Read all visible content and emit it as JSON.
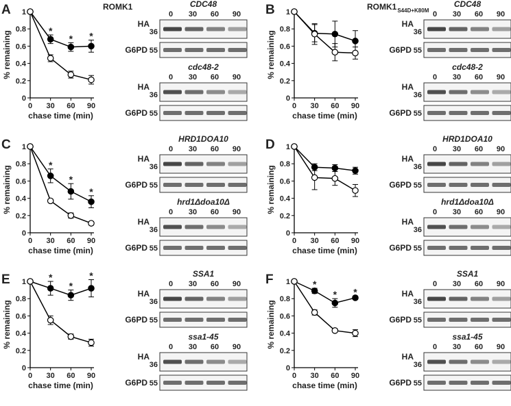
{
  "chart_data": [
    {
      "type": "line",
      "title": "ROMK1",
      "xlabel": "chase time (min)",
      "ylabel": "% remaining",
      "x": [
        0,
        30,
        60,
        90
      ],
      "xlim": [
        0,
        90
      ],
      "xticks": [
        0,
        30,
        60,
        90
      ],
      "ylim": [
        0,
        1
      ],
      "yticks": [
        0,
        0.2,
        0.4,
        0.6,
        0.8,
        1
      ],
      "series": [
        {
          "color": "#000",
          "fill": "#000",
          "values": [
            1,
            0.68,
            0.59,
            0.6
          ],
          "errors": [
            0,
            0.05,
            0.05,
            0.07
          ]
        },
        {
          "color": "#000",
          "fill": "#fff",
          "values": [
            1,
            0.46,
            0.27,
            0.21
          ],
          "errors": [
            0,
            0.04,
            0.04,
            0.05
          ]
        }
      ],
      "annotations": [
        {
          "text": "*",
          "x": 30
        },
        {
          "text": "*",
          "x": 60
        },
        {
          "text": "*",
          "x": 90
        }
      ]
    },
    {
      "type": "line",
      "title": "ROMK1",
      "title_sub": "S44D+K80M",
      "xlabel": "chase time (min)",
      "ylabel": "% remaining",
      "x": [
        0,
        30,
        60,
        90
      ],
      "xlim": [
        0,
        90
      ],
      "xticks": [
        0,
        30,
        60,
        90
      ],
      "ylim": [
        0,
        1
      ],
      "yticks": [
        0,
        0.2,
        0.4,
        0.6,
        0.8,
        1
      ],
      "series": [
        {
          "color": "#000",
          "fill": "#000",
          "values": [
            1,
            0.75,
            0.74,
            0.66
          ],
          "errors": [
            0,
            0.1,
            0.15,
            0.12
          ]
        },
        {
          "color": "#000",
          "fill": "#fff",
          "values": [
            1,
            0.74,
            0.53,
            0.52
          ],
          "errors": [
            0,
            0.12,
            0.1,
            0.07
          ]
        }
      ],
      "annotations": []
    },
    {
      "type": "line",
      "xlabel": "chase time (min)",
      "ylabel": "% remaining",
      "x": [
        0,
        30,
        60,
        90
      ],
      "xlim": [
        0,
        90
      ],
      "xticks": [
        0,
        30,
        60,
        90
      ],
      "ylim": [
        0,
        1
      ],
      "yticks": [
        0,
        0.2,
        0.4,
        0.6,
        0.8,
        1
      ],
      "series": [
        {
          "color": "#000",
          "fill": "#000",
          "values": [
            1,
            0.66,
            0.48,
            0.36
          ],
          "errors": [
            0,
            0.08,
            0.09,
            0.07
          ]
        },
        {
          "color": "#000",
          "fill": "#fff",
          "values": [
            1,
            0.37,
            0.2,
            0.11
          ],
          "errors": [
            0,
            0.02,
            0.03,
            0.02
          ]
        }
      ],
      "annotations": [
        {
          "text": "*",
          "x": 30
        },
        {
          "text": "*",
          "x": 60
        },
        {
          "text": "*",
          "x": 90
        }
      ]
    },
    {
      "type": "line",
      "xlabel": "chase time (min)",
      "ylabel": "% remaining",
      "x": [
        0,
        30,
        60,
        90
      ],
      "xlim": [
        0,
        90
      ],
      "xticks": [
        0,
        30,
        60,
        90
      ],
      "ylim": [
        0,
        1
      ],
      "yticks": [
        0,
        0.2,
        0.4,
        0.6,
        0.8,
        1
      ],
      "series": [
        {
          "color": "#000",
          "fill": "#000",
          "values": [
            1,
            0.76,
            0.75,
            0.72
          ],
          "errors": [
            0,
            0.04,
            0.04,
            0.04
          ]
        },
        {
          "color": "#000",
          "fill": "#fff",
          "values": [
            1,
            0.64,
            0.63,
            0.49
          ],
          "errors": [
            0,
            0.14,
            0.08,
            0.07
          ]
        }
      ],
      "annotations": []
    },
    {
      "type": "line",
      "xlabel": "chase time (min)",
      "ylabel": "% remaining",
      "x": [
        0,
        30,
        60,
        90
      ],
      "xlim": [
        0,
        90
      ],
      "xticks": [
        0,
        30,
        60,
        90
      ],
      "ylim": [
        0,
        1
      ],
      "yticks": [
        0,
        0.2,
        0.4,
        0.6,
        0.8,
        1
      ],
      "series": [
        {
          "color": "#000",
          "fill": "#000",
          "values": [
            1,
            0.92,
            0.84,
            0.92
          ],
          "errors": [
            0,
            0.08,
            0.06,
            0.1
          ]
        },
        {
          "color": "#000",
          "fill": "#fff",
          "values": [
            1,
            0.55,
            0.36,
            0.29
          ],
          "errors": [
            0,
            0.05,
            0.03,
            0.04
          ]
        }
      ],
      "annotations": [
        {
          "text": "*",
          "x": 30
        },
        {
          "text": "*",
          "x": 60
        },
        {
          "text": "*",
          "x": 90
        }
      ]
    },
    {
      "type": "line",
      "xlabel": "chase time (min)",
      "ylabel": "% remaining",
      "x": [
        0,
        30,
        60,
        90
      ],
      "xlim": [
        0,
        90
      ],
      "xticks": [
        0,
        30,
        60,
        90
      ],
      "ylim": [
        0,
        1
      ],
      "yticks": [
        0,
        0.2,
        0.4,
        0.6,
        0.8,
        1
      ],
      "series": [
        {
          "color": "#000",
          "fill": "#000",
          "values": [
            1,
            0.89,
            0.75,
            0.81
          ],
          "errors": [
            0,
            0.03,
            0.05,
            0.02
          ]
        },
        {
          "color": "#000",
          "fill": "#fff",
          "values": [
            1,
            0.64,
            0.43,
            0.4
          ],
          "errors": [
            0,
            0.03,
            0.02,
            0.04
          ]
        }
      ],
      "annotations": [
        {
          "text": "*",
          "x": 30
        },
        {
          "text": "*",
          "x": 60
        },
        {
          "text": "*",
          "x": 90
        }
      ]
    }
  ],
  "panels": [
    {
      "letter": "A",
      "blots": [
        {
          "strain": "CDC48",
          "lanes": [
            "0",
            "30",
            "60",
            "90"
          ],
          "rows": [
            {
              "label": "HA",
              "marker": "36"
            },
            {
              "label": "G6PD",
              "marker": "55"
            }
          ]
        },
        {
          "strain": "cdc48-2",
          "lanes": [
            "0",
            "30",
            "60",
            "90"
          ],
          "rows": [
            {
              "label": "HA",
              "marker": "36"
            },
            {
              "label": "G6PD",
              "marker": "55"
            }
          ]
        }
      ]
    },
    {
      "letter": "B",
      "blots": [
        {
          "strain": "CDC48",
          "lanes": [
            "0",
            "30",
            "60",
            "90"
          ],
          "rows": [
            {
              "label": "HA",
              "marker": "36"
            },
            {
              "label": "G6PD",
              "marker": "55"
            }
          ]
        },
        {
          "strain": "cdc48-2",
          "lanes": [
            "0",
            "30",
            "60",
            "90"
          ],
          "rows": [
            {
              "label": "HA",
              "marker": "36"
            },
            {
              "label": "G6PD",
              "marker": "55"
            }
          ]
        }
      ]
    },
    {
      "letter": "C",
      "blots": [
        {
          "strain": "HRD1DOA10",
          "lanes": [
            "0",
            "30",
            "60",
            "90"
          ],
          "rows": [
            {
              "label": "HA",
              "marker": "36"
            },
            {
              "label": "G6PD",
              "marker": "55"
            }
          ]
        },
        {
          "strain": "hrd1Δdoa10Δ",
          "lanes": [
            "0",
            "30",
            "60",
            "90"
          ],
          "rows": [
            {
              "label": "HA",
              "marker": "36"
            },
            {
              "label": "G6PD",
              "marker": "55"
            }
          ]
        }
      ]
    },
    {
      "letter": "D",
      "blots": [
        {
          "strain": "HRD1DOA10",
          "lanes": [
            "0",
            "30",
            "60",
            "90"
          ],
          "rows": [
            {
              "label": "HA",
              "marker": "36"
            },
            {
              "label": "G6PD",
              "marker": "55"
            }
          ]
        },
        {
          "strain": "hrd1Δdoa10Δ",
          "lanes": [
            "0",
            "30",
            "60",
            "90"
          ],
          "rows": [
            {
              "label": "HA",
              "marker": "36"
            },
            {
              "label": "G6PD",
              "marker": "55"
            }
          ]
        }
      ]
    },
    {
      "letter": "E",
      "blots": [
        {
          "strain": "SSA1",
          "lanes": [
            "0",
            "30",
            "60",
            "90"
          ],
          "rows": [
            {
              "label": "HA",
              "marker": "36"
            },
            {
              "label": "G6PD",
              "marker": "55"
            }
          ]
        },
        {
          "strain": "ssa1-45",
          "lanes": [
            "0",
            "30",
            "60",
            "90"
          ],
          "rows": [
            {
              "label": "HA",
              "marker": "36"
            },
            {
              "label": "G6PD",
              "marker": "55"
            }
          ]
        }
      ]
    },
    {
      "letter": "F",
      "blots": [
        {
          "strain": "SSA1",
          "lanes": [
            "0",
            "30",
            "60",
            "90"
          ],
          "rows": [
            {
              "label": "HA",
              "marker": "36"
            },
            {
              "label": "G6PD",
              "marker": "55"
            }
          ]
        },
        {
          "strain": "ssa1-45",
          "lanes": [
            "0",
            "30",
            "60",
            "90"
          ],
          "rows": [
            {
              "label": "HA",
              "marker": "36"
            },
            {
              "label": "G6PD",
              "marker": "55"
            }
          ]
        }
      ]
    }
  ]
}
